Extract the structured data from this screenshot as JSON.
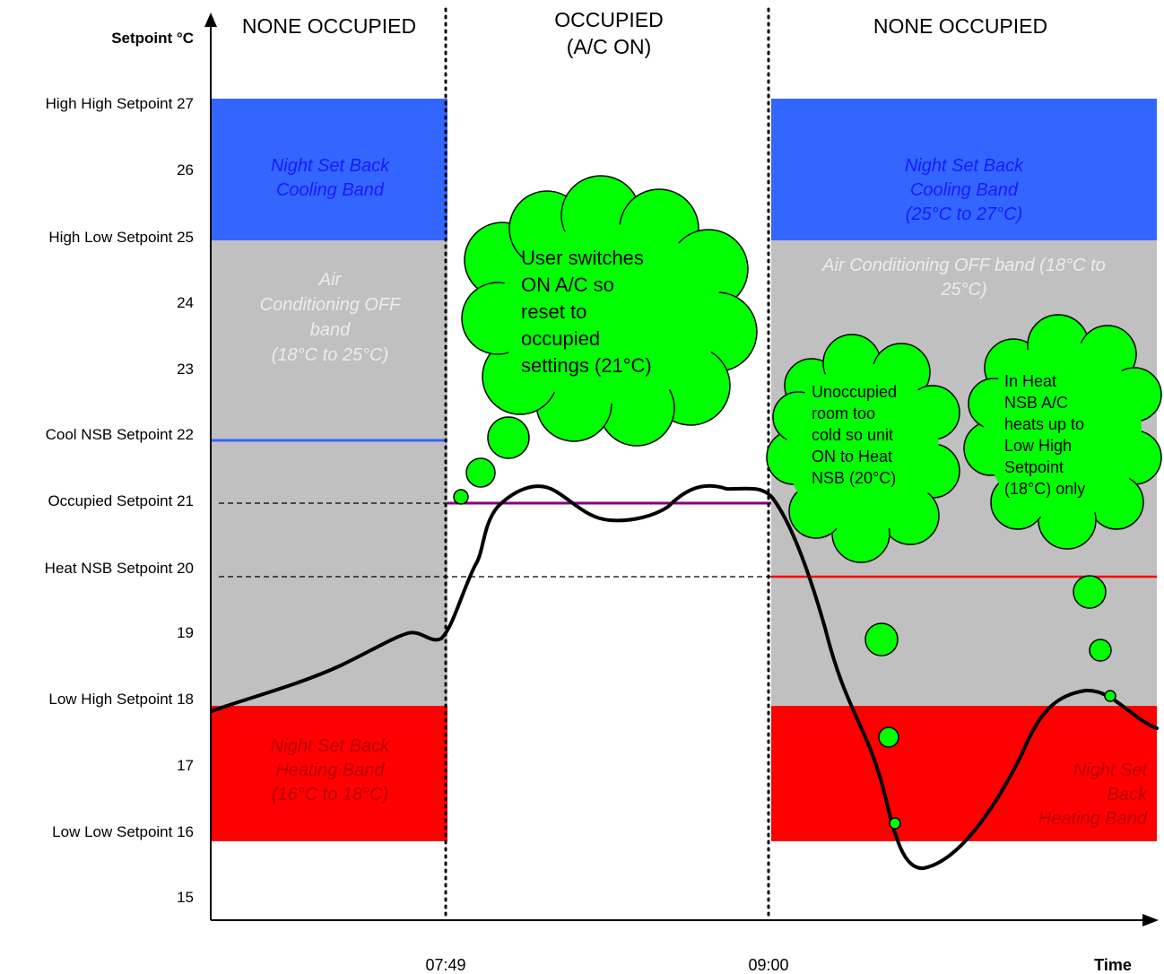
{
  "axes": {
    "y_title": "Setpoint °C",
    "x_title": "Time",
    "y_labels": [
      "High High Setpoint 27",
      "26",
      "High Low Setpoint 25",
      "24",
      "23",
      "Cool NSB Setpoint 22",
      "Occupied Setpoint 21",
      "Heat NSB Setpoint 20",
      "19",
      "Low High Setpoint 18",
      "17",
      "Low Low Setpoint 16",
      "15"
    ],
    "x_labels": [
      "07:49",
      "09:00"
    ]
  },
  "headers": {
    "left": "NONE OCCUPIED",
    "middle_line1": "OCCUPIED",
    "middle_line2": "(A/C ON)",
    "right": "NONE OCCUPIED"
  },
  "bands": {
    "left_cool": [
      "Night Set Back",
      "Cooling Band"
    ],
    "left_off": [
      "Air",
      "Conditioning OFF",
      "band",
      "(18°C to 25°C)"
    ],
    "left_heat": [
      "Night Set Back",
      "Heating Band",
      "(16°C to 18°C)"
    ],
    "right_cool": [
      "Night Set Back",
      "Cooling Band",
      "(25°C to 27°C)"
    ],
    "right_off": [
      "Air Conditioning OFF band (18°C to",
      "25°C)"
    ],
    "right_heat": [
      "Night Set",
      "Back",
      "Heating Band"
    ]
  },
  "clouds": {
    "user_switch": [
      "User switches",
      "ON A/C so",
      "reset to",
      "occupied",
      "settings (21°C)"
    ],
    "unoccupied": [
      "Unoccupied",
      "room too",
      "cold so unit",
      "ON to Heat",
      "NSB (20°C)"
    ],
    "heat_nsb": [
      "In Heat",
      "NSB A/C",
      "heats up to",
      "Low High",
      "Setpoint",
      "(18°C) only"
    ]
  },
  "colors": {
    "cooling_band": "#3366ff",
    "off_band": "#c0c0c0",
    "heating_band": "#ff0000",
    "cloud": "#00ff00",
    "occupied_line": "#800080",
    "heat_nsb_line": "#ff0000",
    "cool_nsb_line": "#3366ff"
  }
}
